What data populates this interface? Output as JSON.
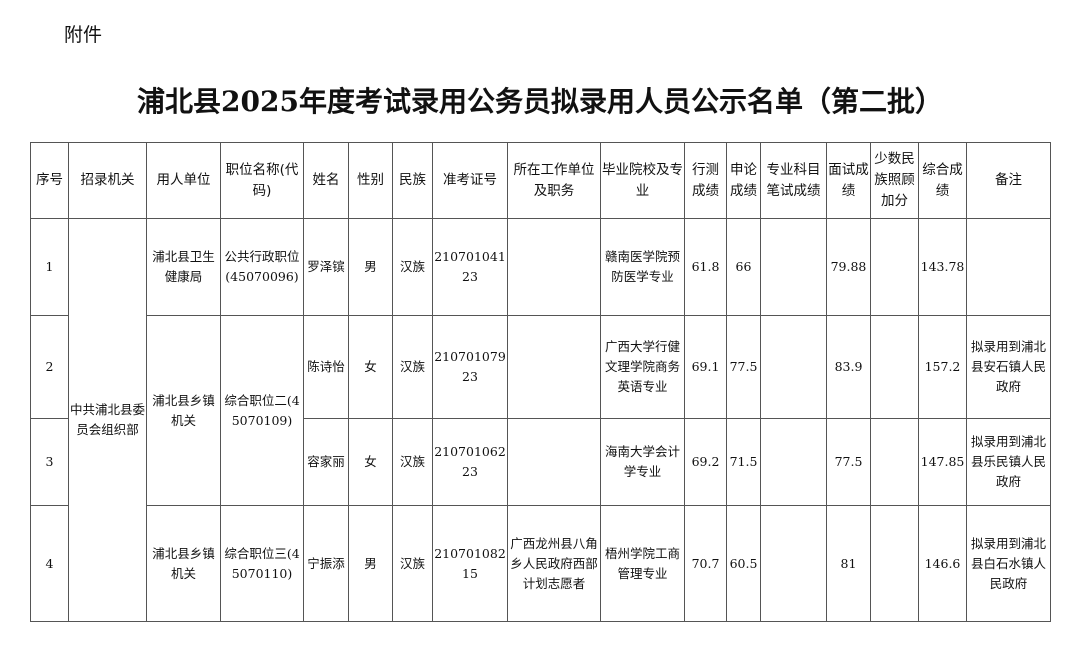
{
  "attachment_label": "附件",
  "title": "浦北县2025年度考试录用公务员拟录用人员公示名单（第二批）",
  "headers": [
    "序号",
    "招录机关",
    "用人单位",
    "职位名称(代码)",
    "姓名",
    "性别",
    "民族",
    "准考证号",
    "所在工作单位及职务",
    "毕业院校及专业",
    "行测成绩",
    "申论成绩",
    "专业科目笔试成绩",
    "面试成绩",
    "少数民族照顾加分",
    "综合成绩",
    "备注"
  ],
  "recruiting_agency": "中共浦北县委员会组织部",
  "rows": [
    {
      "no": "1",
      "unit": "浦北县卫生健康局",
      "position": "公共行政职位(45070096)",
      "name": "罗泽镔",
      "gender": "男",
      "ethnicity": "汉族",
      "exam_id": "21070104123",
      "workplace": "",
      "school": "赣南医学院预防医学专业",
      "xingce": "61.8",
      "shenlun": "66",
      "major_exam": "",
      "interview": "79.88",
      "bonus": "",
      "total": "143.78",
      "note": ""
    },
    {
      "no": "2",
      "unit": "浦北县乡镇机关",
      "position": "综合职位二(45070109)",
      "name": "陈诗怡",
      "gender": "女",
      "ethnicity": "汉族",
      "exam_id": "21070107923",
      "workplace": "",
      "school": "广西大学行健文理学院商务英语专业",
      "xingce": "69.1",
      "shenlun": "77.5",
      "major_exam": "",
      "interview": "83.9",
      "bonus": "",
      "total": "157.2",
      "note": "拟录用到浦北县安石镇人民政府"
    },
    {
      "no": "3",
      "name": "容家丽",
      "gender": "女",
      "ethnicity": "汉族",
      "exam_id": "21070106223",
      "workplace": "",
      "school": "海南大学会计学专业",
      "xingce": "69.2",
      "shenlun": "71.5",
      "major_exam": "",
      "interview": "77.5",
      "bonus": "",
      "total": "147.85",
      "note": "拟录用到浦北县乐民镇人民政府"
    },
    {
      "no": "4",
      "unit": "浦北县乡镇机关",
      "position": "综合职位三(45070110)",
      "name": "宁振添",
      "gender": "男",
      "ethnicity": "汉族",
      "exam_id": "21070108215",
      "workplace": "广西龙州县八角乡人民政府西部计划志愿者",
      "school": "梧州学院工商管理专业",
      "xingce": "70.7",
      "shenlun": "60.5",
      "major_exam": "",
      "interview": "81",
      "bonus": "",
      "total": "146.6",
      "note": "拟录用到浦北县白石水镇人民政府"
    }
  ]
}
